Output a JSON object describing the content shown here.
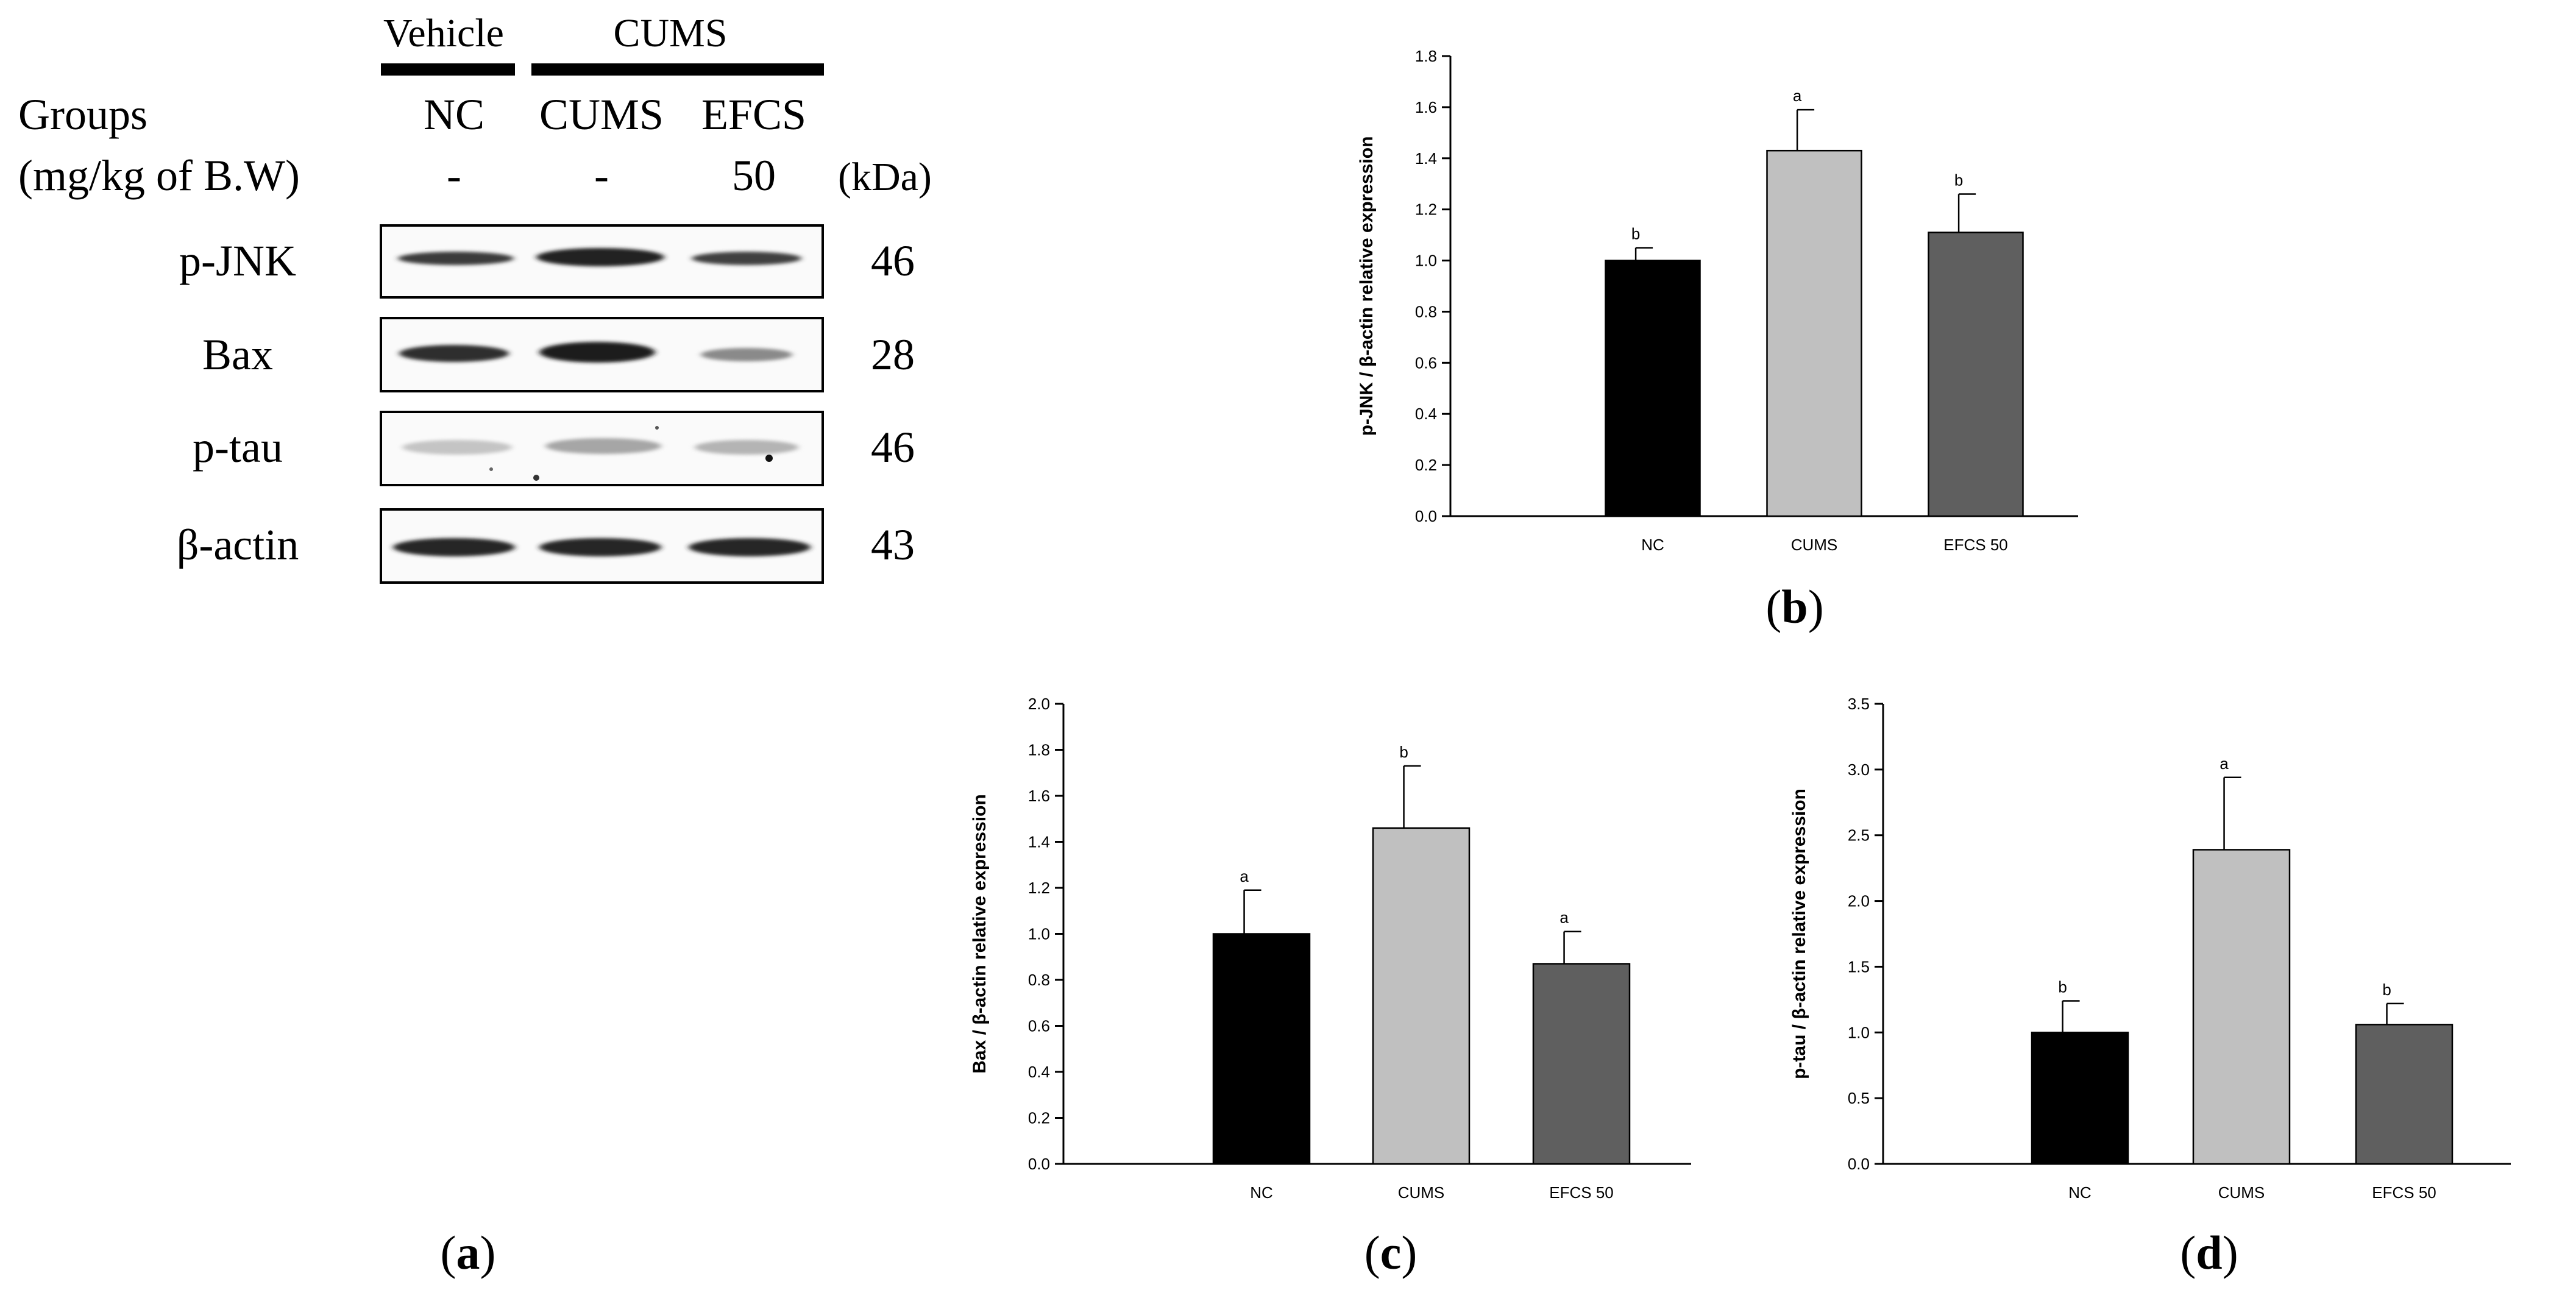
{
  "colors": {
    "nc": "#000000",
    "cums": "#c0c0c0",
    "efcs": "#5f5f5f",
    "axis": "#000000"
  },
  "blot": {
    "vehicle_label": "Vehicle",
    "cums_label": "CUMS",
    "groups_label": "Groups",
    "dose_label": "(mg/kg of B.W)",
    "kda_label": "(kDa)",
    "lanes": [
      {
        "name": "NC",
        "dose": "-"
      },
      {
        "name": "CUMS",
        "dose": "-"
      },
      {
        "name": "EFCS",
        "dose": "50"
      }
    ],
    "proteins": [
      {
        "name": "p-JNK",
        "kda": "46"
      },
      {
        "name": "Bax",
        "kda": "28"
      },
      {
        "name": "p-tau",
        "kda": "46"
      },
      {
        "name": "β-actin",
        "kda": "43"
      }
    ]
  },
  "panel_labels": {
    "a": "a",
    "b": "b",
    "c": "c",
    "d": "d"
  },
  "chart_data": [
    {
      "id": "b",
      "type": "bar",
      "categories": [
        "NC",
        "CUMS",
        "EFCS 50"
      ],
      "values": [
        1.0,
        1.43,
        1.11
      ],
      "errors": [
        0.05,
        0.16,
        0.15
      ],
      "letters": [
        "b",
        "a",
        "b"
      ],
      "ylabel": "p-JNK / β-actin relative expression",
      "xlabel": "",
      "title": "",
      "ylim": [
        0,
        1.8
      ],
      "yticks": [
        "0.0",
        "0.2",
        "0.4",
        "0.6",
        "0.8",
        "1.0",
        "1.2",
        "1.4",
        "1.6",
        "1.8"
      ]
    },
    {
      "id": "c",
      "type": "bar",
      "categories": [
        "NC",
        "CUMS",
        "EFCS 50"
      ],
      "values": [
        1.0,
        1.46,
        0.87
      ],
      "errors": [
        0.19,
        0.27,
        0.14
      ],
      "letters": [
        "a",
        "b",
        "a"
      ],
      "ylabel": "Bax / β-actin relative expression",
      "xlabel": "",
      "title": "",
      "ylim": [
        0,
        2.0
      ],
      "yticks": [
        "0.0",
        "0.2",
        "0.4",
        "0.6",
        "0.8",
        "1.0",
        "1.2",
        "1.4",
        "1.6",
        "1.8",
        "2.0"
      ]
    },
    {
      "id": "d",
      "type": "bar",
      "categories": [
        "NC",
        "CUMS",
        "EFCS 50"
      ],
      "values": [
        1.0,
        2.39,
        1.06
      ],
      "errors": [
        0.24,
        0.55,
        0.16
      ],
      "letters": [
        "b",
        "a",
        "b"
      ],
      "ylabel": "p-tau / β-actin relative expression",
      "xlabel": "",
      "title": "",
      "ylim": [
        0,
        3.5
      ],
      "yticks": [
        "0.0",
        "0.5",
        "1.0",
        "1.5",
        "2.0",
        "2.5",
        "3.0",
        "3.5"
      ]
    }
  ]
}
